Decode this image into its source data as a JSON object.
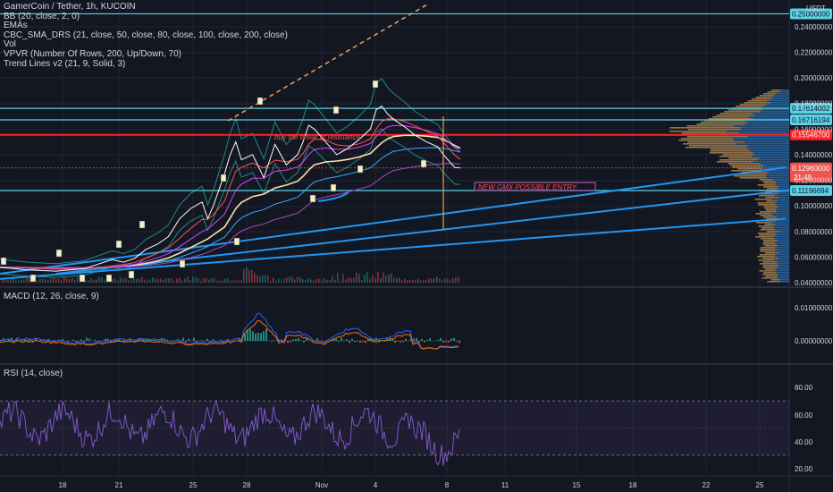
{
  "header": {
    "title": "GamerCoin / Tether, 1h, KUCOIN",
    "indicators": [
      "BB (20, close, 2, 0)",
      "EMAs",
      "CBC_SMA_DRS (21, close, 50, close, 80, close, 100, close, 200, close)",
      "Vol",
      "VPVR (Number Of Rows, 200, Up/Down, 70)",
      "Trend Lines v2 (21, 9, Solid, 3)"
    ]
  },
  "panes": {
    "macd_label": "MACD (12, 26, close, 9)",
    "rsi_label": "RSI (14, close)"
  },
  "price_axis": {
    "currency": "USDT",
    "ticks": [
      "0.24000000",
      "0.22000000",
      "0.20000000",
      "0.18000000",
      "0.16000000",
      "0.14000000",
      "0.12000000",
      "0.10000000",
      "0.08000000",
      "0.06000000",
      "0.04000000"
    ],
    "top_badge": "0.25000000"
  },
  "macd_axis": {
    "ticks": [
      "0.01000000",
      "0.00000000"
    ]
  },
  "rsi_axis": {
    "ticks": [
      "80.00",
      "60.00",
      "40.00",
      "20.00"
    ]
  },
  "time_axis": {
    "labels": [
      "18",
      "21",
      "25",
      "28",
      "Nov",
      "4",
      "8",
      "11",
      "15",
      "18",
      "22",
      "25"
    ]
  },
  "annotations": {
    "note1": "buy the break of resistance",
    "note2": "NEW GMX POSSIBLE ENTRY"
  },
  "chart_data": {
    "type": "line",
    "title": "GamerCoin / Tether, 1h, KUCOIN",
    "ylim": [
      0.04,
      0.26
    ],
    "horizontal_levels": [
      {
        "value": 0.25,
        "label": "0.25000000",
        "color": "#5ad1e6"
      },
      {
        "value": 0.17614002,
        "label": "0.17614002",
        "color": "#5ad1e6"
      },
      {
        "value": 0.16716194,
        "label": "0.16716194",
        "color": "#5ad1e6"
      },
      {
        "value": 0.155467,
        "label": "0.15546700",
        "color": "#ff2222"
      },
      {
        "value": 0.11196694,
        "label": "0.11196694",
        "color": "#5ad1e6"
      }
    ],
    "last_price": {
      "value": 0.1296,
      "label": "0.12960000",
      "countdown": "21:49",
      "color": "#ef5350"
    },
    "price_series": {
      "name": "close",
      "points": [
        [
          0,
          0.052
        ],
        [
          5,
          0.05
        ],
        [
          10,
          0.049
        ],
        [
          15,
          0.051
        ],
        [
          20,
          0.058
        ],
        [
          22,
          0.056
        ],
        [
          24,
          0.059
        ],
        [
          26,
          0.066
        ],
        [
          28,
          0.07
        ],
        [
          30,
          0.076
        ],
        [
          32,
          0.09
        ],
        [
          34,
          0.098
        ],
        [
          36,
          0.103
        ],
        [
          37,
          0.09
        ],
        [
          38,
          0.1
        ],
        [
          40,
          0.125
        ],
        [
          41,
          0.14
        ],
        [
          42,
          0.15
        ],
        [
          43,
          0.136
        ],
        [
          45,
          0.14
        ],
        [
          47,
          0.122
        ],
        [
          49,
          0.148
        ],
        [
          51,
          0.132
        ],
        [
          53,
          0.14
        ],
        [
          54,
          0.15
        ],
        [
          55,
          0.163
        ],
        [
          56,
          0.16
        ],
        [
          58,
          0.15
        ],
        [
          60,
          0.14
        ],
        [
          62,
          0.145
        ],
        [
          64,
          0.152
        ],
        [
          66,
          0.16
        ],
        [
          67,
          0.175
        ],
        [
          68,
          0.178
        ],
        [
          69,
          0.172
        ],
        [
          70,
          0.168
        ],
        [
          72,
          0.162
        ],
        [
          74,
          0.155
        ],
        [
          76,
          0.15
        ],
        [
          78,
          0.146
        ],
        [
          79,
          0.14
        ],
        [
          80,
          0.135
        ],
        [
          81,
          0.13
        ],
        [
          82,
          0.1296
        ]
      ]
    },
    "trend_lines": [
      {
        "from": [
          0,
          0.047
        ],
        "to": [
          140,
          0.13
        ],
        "color": "#2196f3"
      },
      {
        "from": [
          10,
          0.047
        ],
        "to": [
          140,
          0.112
        ],
        "color": "#2196f3"
      },
      {
        "from": [
          0,
          0.043
        ],
        "to": [
          140,
          0.09
        ],
        "color": "#2196f3"
      }
    ],
    "macd": {
      "ylim": [
        -0.004,
        0.016
      ],
      "zero": 0.0
    },
    "rsi": {
      "ylim": [
        15,
        95
      ],
      "bands": [
        70,
        30
      ],
      "mid": 50
    }
  }
}
